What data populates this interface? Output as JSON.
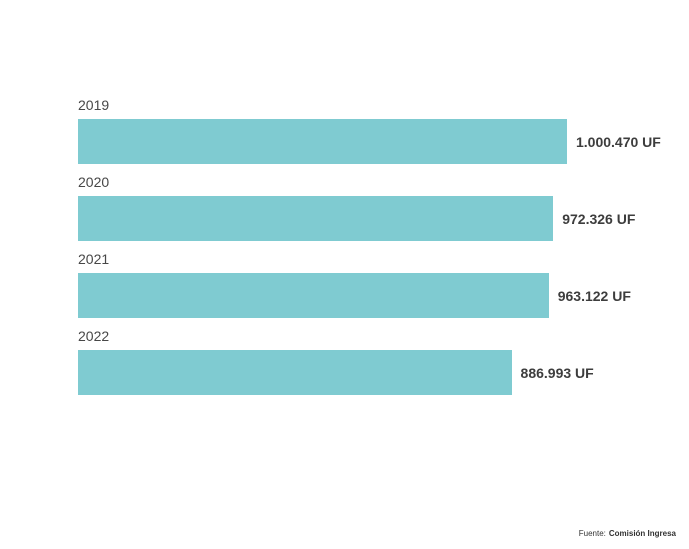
{
  "chart_data": {
    "type": "bar",
    "orientation": "horizontal",
    "title": "",
    "categories": [
      "2019",
      "2020",
      "2021",
      "2022"
    ],
    "values": [
      1000470,
      972326,
      963122,
      886993
    ],
    "value_labels": [
      "1.000.470 UF",
      "972.326 UF",
      "963.122 UF",
      "886.993 UF"
    ],
    "unit": "UF",
    "xlim": [
      0,
      1000470
    ],
    "grid": false,
    "legend": false,
    "bar_color": "#7FCBD1",
    "label_color": "#474747",
    "value_color": "#3D3D3D"
  },
  "footer": {
    "prefix": "Fuente:",
    "source": "Comisión Ingresa"
  }
}
